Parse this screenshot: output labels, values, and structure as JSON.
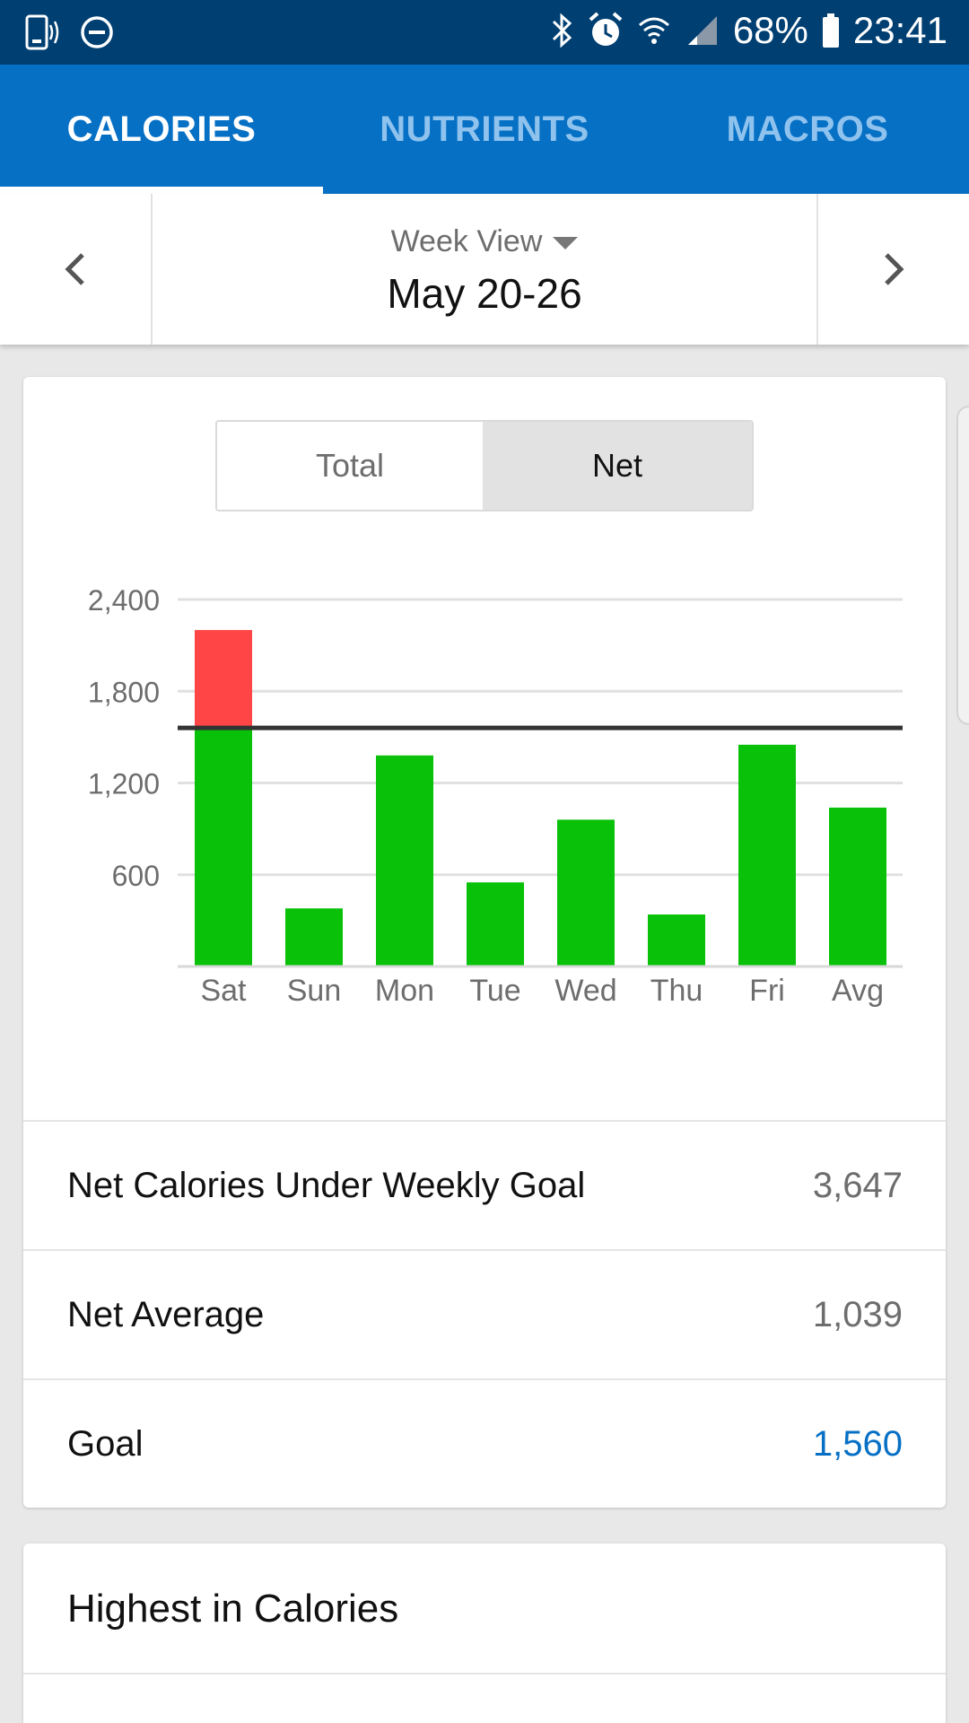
{
  "status_bar": {
    "battery": "68%",
    "time": "23:41",
    "icons": [
      "phone-vibrate-icon",
      "do-not-disturb-icon",
      "bluetooth-icon",
      "alarm-icon",
      "wifi-icon",
      "signal-icon",
      "battery-icon"
    ]
  },
  "tabs": [
    {
      "label": "CALORIES",
      "active": true
    },
    {
      "label": "NUTRIENTS",
      "active": false
    },
    {
      "label": "MACROS",
      "active": false
    }
  ],
  "week_nav": {
    "view_label": "Week View",
    "range": "May 20-26",
    "prev_icon": "chevron-left-icon",
    "next_icon": "chevron-right-icon"
  },
  "toggle": {
    "total_label": "Total",
    "net_label": "Net",
    "selected": "Net"
  },
  "chart_data": {
    "type": "bar",
    "categories": [
      "Sat",
      "Sun",
      "Mon",
      "Tue",
      "Wed",
      "Thu",
      "Fri",
      "Avg"
    ],
    "values": [
      2200,
      380,
      1380,
      550,
      960,
      340,
      1450,
      1039
    ],
    "goal": 1560,
    "yticks": [
      "600",
      "1,200",
      "1,800",
      "2,400"
    ],
    "ytick_values": [
      600,
      1200,
      1800,
      2400
    ],
    "ylim": [
      0,
      2400
    ],
    "colors": {
      "under": "#08c108",
      "over": "#ff4545",
      "goal_line": "#333333",
      "grid": "#e0e0e0"
    },
    "grid": true,
    "legend": "none"
  },
  "stats": {
    "under_goal_label": "Net Calories Under Weekly Goal",
    "under_goal_value": "3,647",
    "net_average_label": "Net Average",
    "net_average_value": "1,039",
    "goal_label": "Goal",
    "goal_value": "1,560"
  },
  "highest": {
    "title": "Highest in Calories"
  }
}
